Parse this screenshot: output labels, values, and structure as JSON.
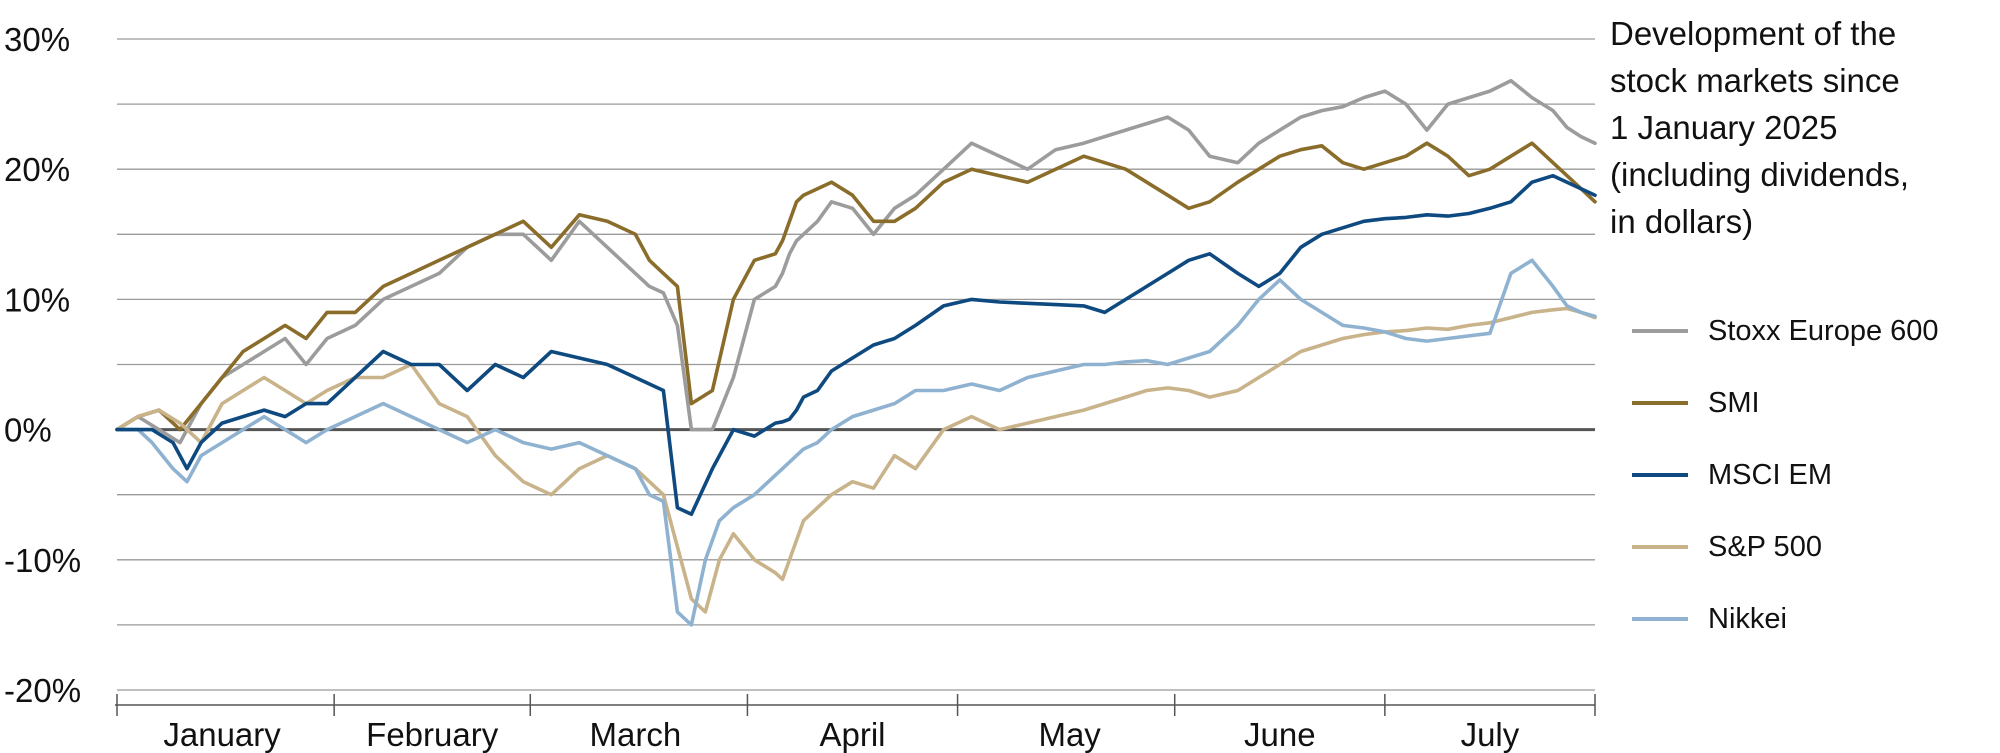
{
  "chart_data": {
    "type": "line",
    "title": "Development of the stock markets since 1 January 2025 (including dividends, in dollars)",
    "title_lines": [
      "Development of the",
      "stock markets since",
      "1 January 2025",
      "(including dividends,",
      "in dollars)"
    ],
    "ylim": [
      -20,
      30
    ],
    "y_ticks": [
      -20,
      -10,
      0,
      10,
      20,
      30
    ],
    "y_tick_labels": [
      "-20%",
      "-10%",
      "0%",
      "10%",
      "20%",
      "30%"
    ],
    "x_tick_labels": [
      "January",
      "February",
      "March",
      "April",
      "May",
      "June",
      "July"
    ],
    "x_label_day": [
      15,
      45,
      74,
      105,
      136,
      166,
      196
    ],
    "x_boundaries_day": [
      0,
      31,
      59,
      90,
      120,
      151,
      181,
      211
    ],
    "x_range_day": [
      0,
      211
    ],
    "grid": "horizontal",
    "legend_placement": "right",
    "series": [
      {
        "name": "Stoxx Europe 600",
        "color": "#9c9c9c",
        "x": [
          0,
          3,
          6,
          9,
          12,
          15,
          18,
          21,
          24,
          27,
          30,
          34,
          38,
          42,
          46,
          50,
          54,
          58,
          62,
          66,
          70,
          74,
          76,
          78,
          80,
          82,
          85,
          88,
          91,
          94,
          95,
          96,
          97,
          98,
          100,
          102,
          105,
          108,
          111,
          114,
          118,
          122,
          126,
          130,
          134,
          138,
          141,
          144,
          147,
          150,
          153,
          156,
          160,
          163,
          166,
          169,
          172,
          175,
          178,
          181,
          184,
          187,
          190,
          193,
          196,
          199,
          202,
          205,
          207,
          209,
          211
        ],
        "y": [
          0,
          1,
          0,
          -1,
          2,
          4,
          5,
          6,
          7,
          5,
          7,
          8,
          10,
          11,
          12,
          14,
          15,
          15,
          13,
          16,
          14,
          12,
          11,
          10.5,
          8,
          0,
          0,
          4,
          10,
          11,
          12,
          13.5,
          14.5,
          15,
          16,
          17.5,
          17,
          15,
          17,
          18,
          20,
          22,
          21,
          20,
          21.5,
          22,
          22.5,
          23,
          23.5,
          24,
          23,
          21,
          20.5,
          22,
          23,
          24,
          24.5,
          24.8,
          25.5,
          26,
          25,
          23,
          25,
          25.5,
          26,
          26.8,
          25.5,
          24.5,
          23.2,
          22.5,
          22
        ]
      },
      {
        "name": "SMI",
        "color": "#8a6d2b",
        "x": [
          0,
          3,
          6,
          9,
          12,
          15,
          18,
          21,
          24,
          27,
          30,
          34,
          38,
          42,
          46,
          50,
          54,
          58,
          62,
          66,
          70,
          74,
          76,
          78,
          80,
          82,
          85,
          88,
          91,
          94,
          95,
          96,
          97,
          98,
          100,
          102,
          105,
          108,
          111,
          114,
          118,
          122,
          126,
          130,
          134,
          138,
          141,
          144,
          147,
          150,
          153,
          156,
          160,
          163,
          166,
          169,
          172,
          175,
          178,
          181,
          184,
          187,
          190,
          193,
          196,
          199,
          202,
          205,
          207,
          209,
          211
        ],
        "y": [
          0,
          1,
          1.5,
          0,
          2,
          4,
          6,
          7,
          8,
          7,
          9,
          9,
          11,
          12,
          13,
          14,
          15,
          16,
          14,
          16.5,
          16,
          15,
          13,
          12,
          11,
          2,
          3,
          10,
          13,
          13.5,
          14.5,
          16,
          17.5,
          18,
          18.5,
          19,
          18,
          16,
          16,
          17,
          19,
          20,
          19.5,
          19,
          20,
          21,
          20.5,
          20,
          19,
          18,
          17,
          17.5,
          19,
          20,
          21,
          21.5,
          21.8,
          20.5,
          20,
          20.5,
          21,
          22,
          21,
          19.5,
          20,
          21,
          22,
          20.5,
          19.5,
          18.5,
          17.5
        ]
      },
      {
        "name": "MSCI EM",
        "color": "#0e4a80",
        "x": [
          0,
          3,
          5,
          8,
          10,
          12,
          15,
          18,
          21,
          24,
          27,
          30,
          34,
          38,
          42,
          46,
          50,
          54,
          58,
          62,
          66,
          70,
          74,
          76,
          78,
          80,
          82,
          85,
          88,
          91,
          94,
          95,
          96,
          97,
          98,
          100,
          102,
          105,
          108,
          111,
          114,
          118,
          122,
          126,
          130,
          134,
          138,
          141,
          144,
          147,
          150,
          153,
          156,
          160,
          163,
          166,
          169,
          172,
          175,
          178,
          181,
          184,
          187,
          190,
          193,
          196,
          199,
          202,
          205,
          207,
          209,
          211
        ],
        "y": [
          0,
          0,
          0,
          -1,
          -3,
          -1,
          0.5,
          1,
          1.5,
          1,
          2,
          2,
          4,
          6,
          5,
          5,
          3,
          5,
          4,
          6,
          5.5,
          5,
          4,
          3.5,
          3,
          -6,
          -6.5,
          -3,
          0,
          -0.5,
          0.5,
          0.6,
          0.8,
          1.5,
          2.5,
          3,
          4.5,
          5.5,
          6.5,
          7,
          8,
          9.5,
          10,
          9.8,
          9.7,
          9.6,
          9.5,
          9,
          10,
          11,
          12,
          13,
          13.5,
          12,
          11,
          12,
          14,
          15,
          15.5,
          16,
          16.2,
          16.3,
          16.5,
          16.4,
          16.6,
          17,
          17.5,
          19,
          19.5,
          19,
          18.5,
          18
        ]
      },
      {
        "name": "S&P 500",
        "color": "#c9b38a",
        "x": [
          0,
          3,
          6,
          9,
          12,
          15,
          18,
          21,
          24,
          27,
          30,
          34,
          38,
          42,
          46,
          50,
          54,
          58,
          62,
          66,
          70,
          74,
          76,
          78,
          80,
          82,
          84,
          86,
          88,
          91,
          94,
          95,
          96,
          97,
          98,
          100,
          102,
          105,
          108,
          111,
          114,
          118,
          122,
          126,
          130,
          134,
          138,
          141,
          144,
          147,
          150,
          153,
          156,
          160,
          163,
          166,
          169,
          172,
          175,
          178,
          181,
          184,
          187,
          190,
          193,
          196,
          199,
          202,
          205,
          207,
          209,
          211
        ],
        "y": [
          0,
          1,
          1.5,
          0.5,
          -1,
          2,
          3,
          4,
          3,
          2,
          3,
          4,
          4,
          5,
          2,
          1,
          -2,
          -4,
          -5,
          -3,
          -2,
          -3,
          -4,
          -5,
          -9,
          -13,
          -14,
          -10,
          -8,
          -10,
          -11,
          -11.5,
          -10,
          -8.5,
          -7,
          -6,
          -5,
          -4,
          -4.5,
          -2,
          -3,
          0,
          1,
          0,
          0.5,
          1,
          1.5,
          2,
          2.5,
          3,
          3.2,
          3,
          2.5,
          3,
          4,
          5,
          6,
          6.5,
          7,
          7.3,
          7.5,
          7.6,
          7.8,
          7.7,
          8,
          8.2,
          8.6,
          9,
          9.2,
          9.3,
          9,
          8.6
        ]
      },
      {
        "name": "Nikkei",
        "color": "#8fb2d1",
        "x": [
          0,
          3,
          5,
          8,
          10,
          12,
          15,
          18,
          21,
          24,
          27,
          30,
          34,
          38,
          42,
          46,
          50,
          54,
          58,
          62,
          66,
          70,
          74,
          76,
          78,
          80,
          82,
          84,
          86,
          88,
          91,
          94,
          95,
          96,
          97,
          98,
          100,
          102,
          105,
          108,
          111,
          114,
          118,
          122,
          126,
          130,
          134,
          138,
          141,
          144,
          147,
          150,
          153,
          156,
          160,
          163,
          166,
          169,
          172,
          175,
          178,
          181,
          184,
          187,
          190,
          193,
          196,
          199,
          202,
          205,
          207,
          209,
          211
        ],
        "y": [
          0,
          0,
          -1,
          -3,
          -4,
          -2,
          -1,
          0,
          1,
          0,
          -1,
          0,
          1,
          2,
          1,
          0,
          -1,
          0,
          -1,
          -1.5,
          -1,
          -2,
          -3,
          -5,
          -5.5,
          -14,
          -15,
          -10,
          -7,
          -6,
          -5,
          -3.5,
          -3,
          -2.5,
          -2,
          -1.5,
          -1,
          0,
          1,
          1.5,
          2,
          3,
          3,
          3.5,
          3,
          4,
          4.5,
          5,
          5,
          5.2,
          5.3,
          5,
          5.5,
          6,
          8,
          10,
          11.5,
          10,
          9,
          8,
          7.8,
          7.5,
          7,
          6.8,
          7,
          7.2,
          7.4,
          12,
          13,
          11,
          9.5,
          9,
          8.7
        ]
      }
    ]
  }
}
